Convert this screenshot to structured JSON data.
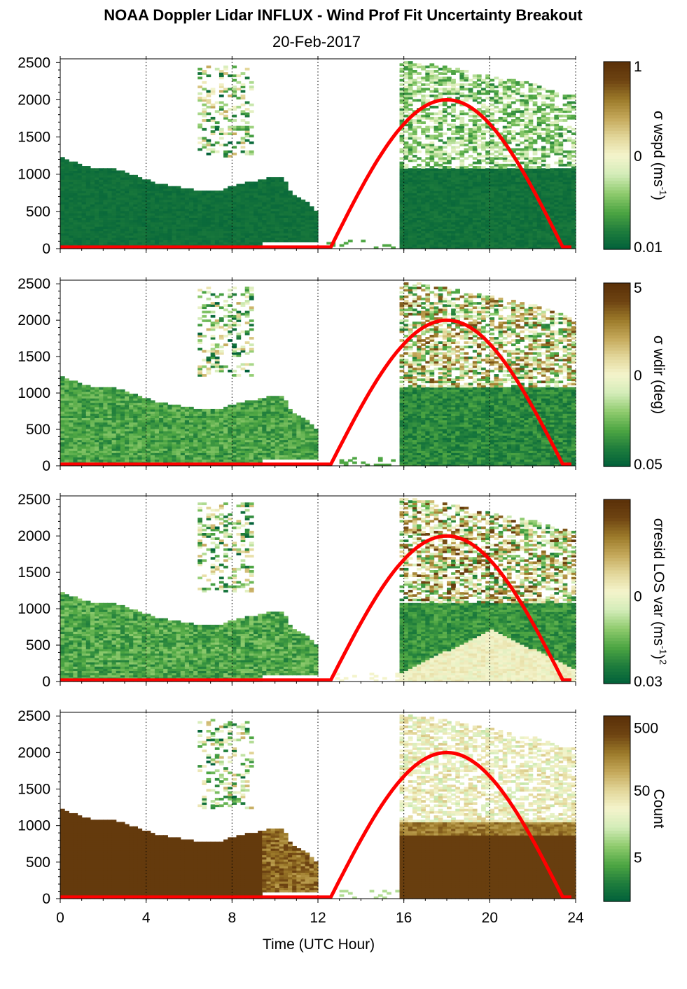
{
  "title": "NOAA Doppler Lidar INFLUX - Wind Prof Fit Uncertainty Breakout",
  "subtitle": "20-Feb-2017",
  "colors": {
    "sun_curve": "#ff0000",
    "colormap": [
      "#00603a",
      "#1f7d3c",
      "#4ea643",
      "#8fcb6e",
      "#d3ecb8",
      "#f4f4cc",
      "#e3d79a",
      "#c4a85a",
      "#9c7a2a",
      "#6e4412",
      "#5a3008"
    ]
  },
  "chart_data": [
    {
      "type": "heatmap",
      "panel": 1,
      "xlabel": "",
      "ylabel": "",
      "xlim": [
        0,
        24
      ],
      "ylim": [
        0,
        2550
      ],
      "x_ticks": [
        "0",
        "4",
        "8",
        "12",
        "16",
        "20",
        "24"
      ],
      "y_ticks": [
        "0",
        "500",
        "1000",
        "1500",
        "2000",
        "2500"
      ],
      "colorbar_label_parts": [
        "σ wspd (ms",
        "-1",
        ")"
      ],
      "colorbar_ticks": [
        "1",
        "0",
        "0.01"
      ],
      "colorbar_scale": "log",
      "data_extent": [
        {
          "t0": 0.0,
          "t1": 9.2,
          "top": [
            1200,
            1150,
            1100,
            1070,
            1060,
            1050,
            1000,
            950,
            900,
            850,
            830,
            800,
            780,
            760,
            760,
            800,
            850,
            880,
            900
          ]
        },
        {
          "t0": 9.2,
          "t1": 11.8,
          "top": [
            900,
            950,
            950,
            700,
            650,
            500
          ]
        },
        {
          "t0": 15.7,
          "t1": 23.8,
          "top": [
            2500,
            2500,
            2450,
            2400,
            2350,
            2300,
            2250,
            2200,
            2100,
            2050
          ]
        }
      ],
      "sun_curve": {
        "rise": 12.6,
        "noon": 18.0,
        "set": 23.4,
        "peak": 2000
      }
    },
    {
      "type": "heatmap",
      "panel": 2,
      "xlabel": "",
      "ylabel": "",
      "xlim": [
        0,
        24
      ],
      "ylim": [
        0,
        2550
      ],
      "x_ticks": [
        "0",
        "4",
        "8",
        "12",
        "16",
        "20",
        "24"
      ],
      "y_ticks": [
        "0",
        "500",
        "1000",
        "1500",
        "2000",
        "2500"
      ],
      "colorbar_label_parts": [
        "σ wdir (deg)"
      ],
      "colorbar_ticks": [
        "5",
        "0",
        "0.05"
      ],
      "colorbar_scale": "log",
      "sun_curve": {
        "rise": 12.6,
        "noon": 18.0,
        "set": 23.4,
        "peak": 2000
      }
    },
    {
      "type": "heatmap",
      "panel": 3,
      "xlabel": "",
      "ylabel": "",
      "xlim": [
        0,
        24
      ],
      "ylim": [
        0,
        2550
      ],
      "x_ticks": [
        "0",
        "4",
        "8",
        "12",
        "16",
        "20",
        "24"
      ],
      "y_ticks": [
        "0",
        "500",
        "1000",
        "1500",
        "2000",
        "2500"
      ],
      "colorbar_label_parts": [
        "σresid LOS var (ms",
        "-1",
        ")",
        "2"
      ],
      "colorbar_ticks": [
        "0",
        "0.03"
      ],
      "colorbar_scale": "log",
      "sun_curve": {
        "rise": 12.6,
        "noon": 18.0,
        "set": 23.4,
        "peak": 2000
      }
    },
    {
      "type": "heatmap",
      "panel": 4,
      "xlabel": "Time (UTC Hour)",
      "ylabel": "",
      "xlim": [
        0,
        24
      ],
      "ylim": [
        0,
        2550
      ],
      "x_ticks": [
        "0",
        "4",
        "8",
        "12",
        "16",
        "20",
        "24"
      ],
      "y_ticks": [
        "0",
        "500",
        "1000",
        "1500",
        "2000",
        "2500"
      ],
      "colorbar_label_parts": [
        "Count"
      ],
      "colorbar_ticks": [
        "500",
        "50",
        "5"
      ],
      "colorbar_scale": "log",
      "sun_curve": {
        "rise": 12.6,
        "noon": 18.0,
        "set": 23.4,
        "peak": 2000
      }
    }
  ]
}
